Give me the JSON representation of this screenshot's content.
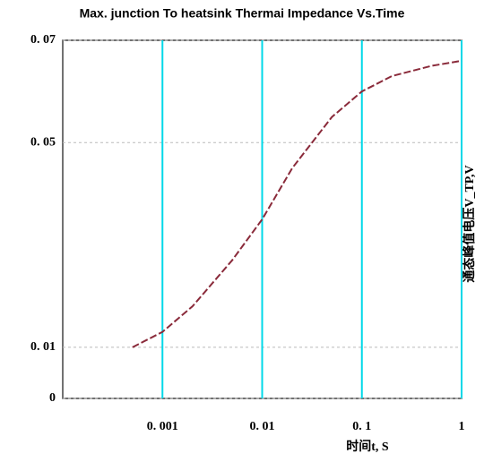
{
  "chart_data": {
    "type": "line",
    "title": "Max. junction To heatsink Thermai Impedance Vs.Time",
    "x_label": "时间t, S",
    "y_label": "通态峰值电压V_TP,V",
    "xlog": true,
    "xlim": [
      0.0001,
      1
    ],
    "xticks": [
      {
        "value": 0.001,
        "label": "0. 001"
      },
      {
        "value": 0.01,
        "label": "0. 01"
      },
      {
        "value": 0.1,
        "label": "0. 1"
      },
      1
    ],
    "ylim": [
      0,
      0.07
    ],
    "yticks": [
      0,
      {
        "value": 0.01,
        "label": "0. 01"
      },
      {
        "value": 0.05,
        "label": "0. 05"
      },
      {
        "value": 0.07,
        "label": "0. 07"
      }
    ],
    "grid": true,
    "series": [
      {
        "color": "#8a2a3a",
        "x": [
          0.0005,
          0.001,
          0.002,
          0.005,
          0.01,
          0.02,
          0.05,
          0.1,
          0.2,
          0.5,
          1
        ],
        "values": [
          0.01,
          0.013,
          0.018,
          0.027,
          0.035,
          0.045,
          0.055,
          0.06,
          0.063,
          0.065,
          0.066
        ]
      }
    ]
  }
}
